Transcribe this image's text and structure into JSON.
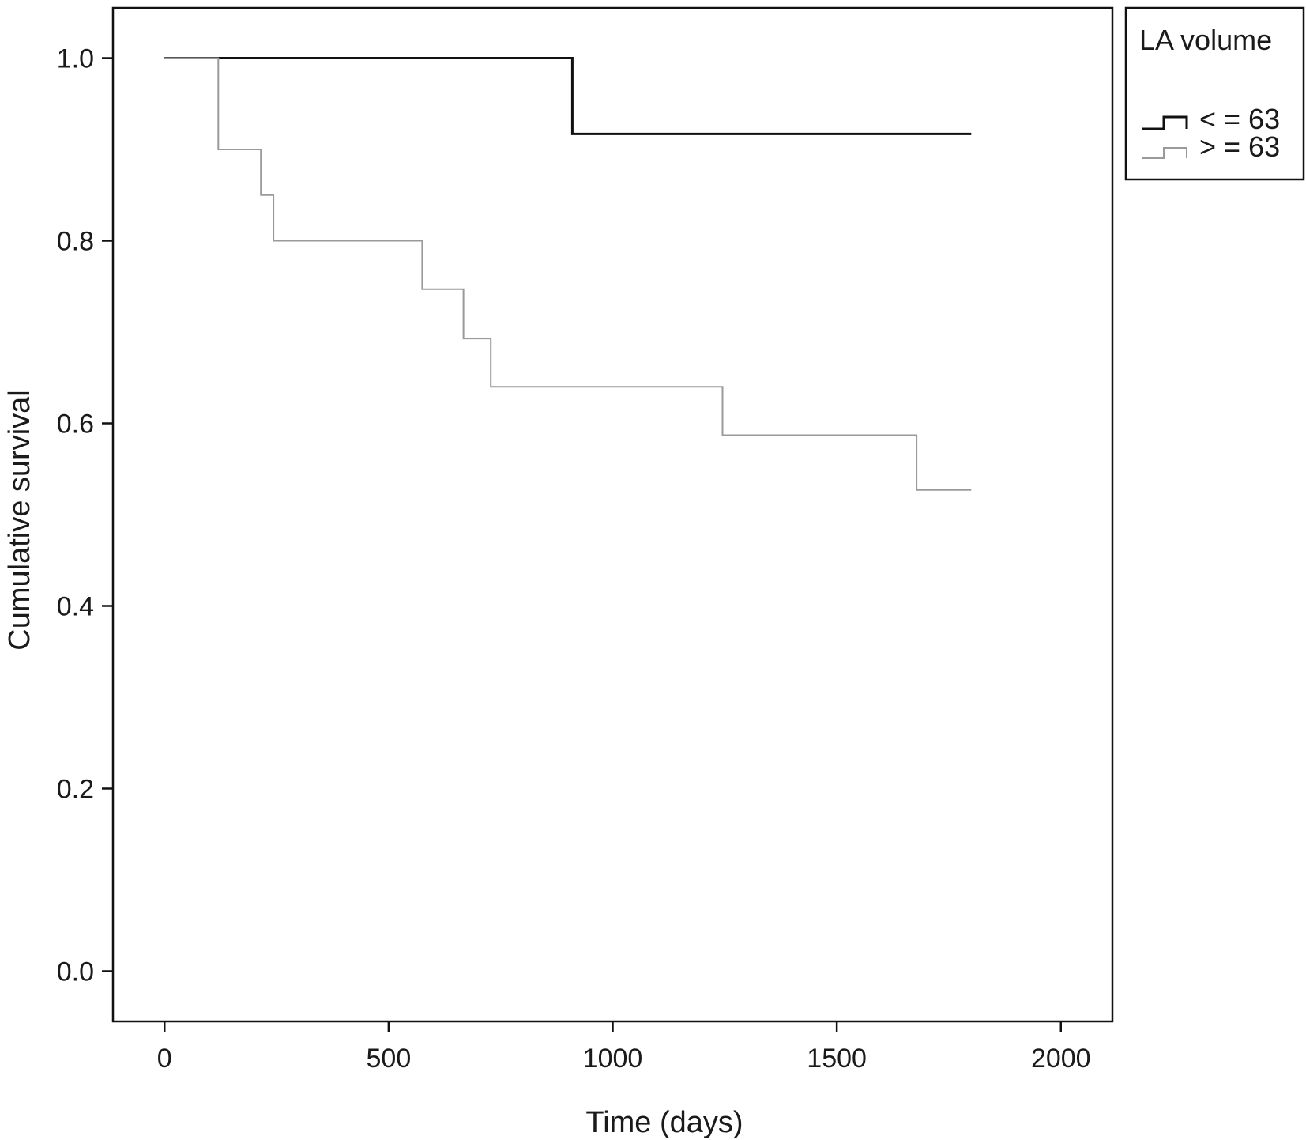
{
  "chart_data": {
    "type": "line",
    "step": true,
    "title": "",
    "xlabel": "Time (days)",
    "ylabel": "Cumulative survival",
    "xlim": [
      -115,
      2115
    ],
    "ylim": [
      -0.055,
      1.055
    ],
    "xticks": [
      0,
      500,
      1000,
      1500,
      2000
    ],
    "yticks": [
      0.0,
      0.2,
      0.4,
      0.6,
      0.8,
      1.0
    ],
    "xtick_labels": [
      "0",
      "500",
      "1000",
      "1500",
      "2000"
    ],
    "ytick_labels": [
      "0.0",
      "0.2",
      "0.4",
      "0.6",
      "0.8",
      "1.0"
    ],
    "grid": false,
    "legend": {
      "title": "LA volume",
      "position": "outside-top-right"
    },
    "series": [
      {
        "name": "< = 63",
        "color": "#111111",
        "points": [
          [
            0,
            1.0
          ],
          [
            910,
            1.0
          ],
          [
            910,
            0.917
          ],
          [
            1800,
            0.917
          ]
        ]
      },
      {
        "name": "> = 63",
        "color": "#9a9a9a",
        "points": [
          [
            0,
            1.0
          ],
          [
            120,
            1.0
          ],
          [
            120,
            0.9
          ],
          [
            215,
            0.9
          ],
          [
            215,
            0.85
          ],
          [
            243,
            0.85
          ],
          [
            243,
            0.8
          ],
          [
            575,
            0.8
          ],
          [
            575,
            0.747
          ],
          [
            667,
            0.747
          ],
          [
            667,
            0.693
          ],
          [
            728,
            0.693
          ],
          [
            728,
            0.64
          ],
          [
            1245,
            0.64
          ],
          [
            1245,
            0.587
          ],
          [
            1678,
            0.587
          ],
          [
            1678,
            0.527
          ],
          [
            1800,
            0.527
          ]
        ]
      }
    ]
  }
}
